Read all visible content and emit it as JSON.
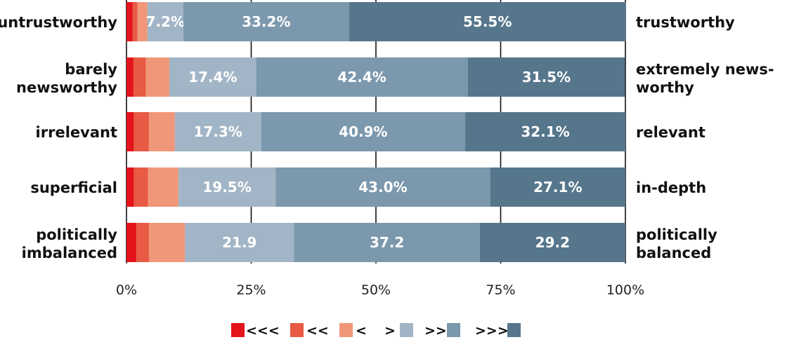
{
  "chart_data": {
    "type": "bar",
    "orientation": "horizontal",
    "stacked": true,
    "categories": [
      {
        "left": [
          "untrustworthy"
        ],
        "right": [
          "trustworthy"
        ]
      },
      {
        "left": [
          "barely",
          "newsworthy"
        ],
        "right": [
          "extremely news-",
          "worthy"
        ]
      },
      {
        "left": [
          "irrelevant"
        ],
        "right": [
          "relevant"
        ]
      },
      {
        "left": [
          "superficial"
        ],
        "right": [
          "in-depth"
        ]
      },
      {
        "left": [
          "politically",
          "imbalanced"
        ],
        "right": [
          "politically",
          "balanced"
        ]
      }
    ],
    "series": [
      {
        "name": "<<<",
        "color": "#e3121b",
        "values": [
          1.2,
          1.4,
          1.5,
          1.5,
          2.0
        ]
      },
      {
        "name": "<<",
        "color": "#e85a43",
        "values": [
          1.0,
          2.5,
          3.0,
          2.8,
          2.5
        ]
      },
      {
        "name": "<",
        "color": "#f0977a",
        "values": [
          2.0,
          4.7,
          5.2,
          6.1,
          7.2
        ]
      },
      {
        "name": ">",
        "color": "#a1b5c6",
        "values": [
          7.2,
          17.4,
          17.3,
          19.5,
          21.9
        ]
      },
      {
        "name": ">>",
        "color": "#7b98ad",
        "values": [
          33.2,
          42.4,
          40.9,
          43.0,
          37.2
        ]
      },
      {
        "name": ">>>",
        "color": "#56768c",
        "values": [
          55.5,
          31.5,
          32.1,
          27.1,
          29.2
        ]
      }
    ],
    "data_labels": [
      [
        null,
        null,
        null,
        "7.2%",
        "33.2%",
        "55.5%"
      ],
      [
        null,
        null,
        null,
        "17.4%",
        "42.4%",
        "31.5%"
      ],
      [
        null,
        null,
        null,
        "17.3%",
        "40.9%",
        "32.1%"
      ],
      [
        null,
        null,
        null,
        "19.5%",
        "43.0%",
        "27.1%"
      ],
      [
        null,
        null,
        null,
        "21.9",
        "37.2",
        "29.2"
      ]
    ],
    "xlim": [
      0,
      100
    ],
    "xticks": [
      0,
      25,
      50,
      75,
      100
    ],
    "xtick_labels": [
      "0%",
      "25%",
      "50%",
      "75%",
      "100%"
    ],
    "grid": "vertical lines at ticks",
    "legend": {
      "position": "bottom-center",
      "labels": [
        "<<<",
        "<<",
        "<",
        ">",
        ">>",
        ">>>"
      ]
    }
  }
}
